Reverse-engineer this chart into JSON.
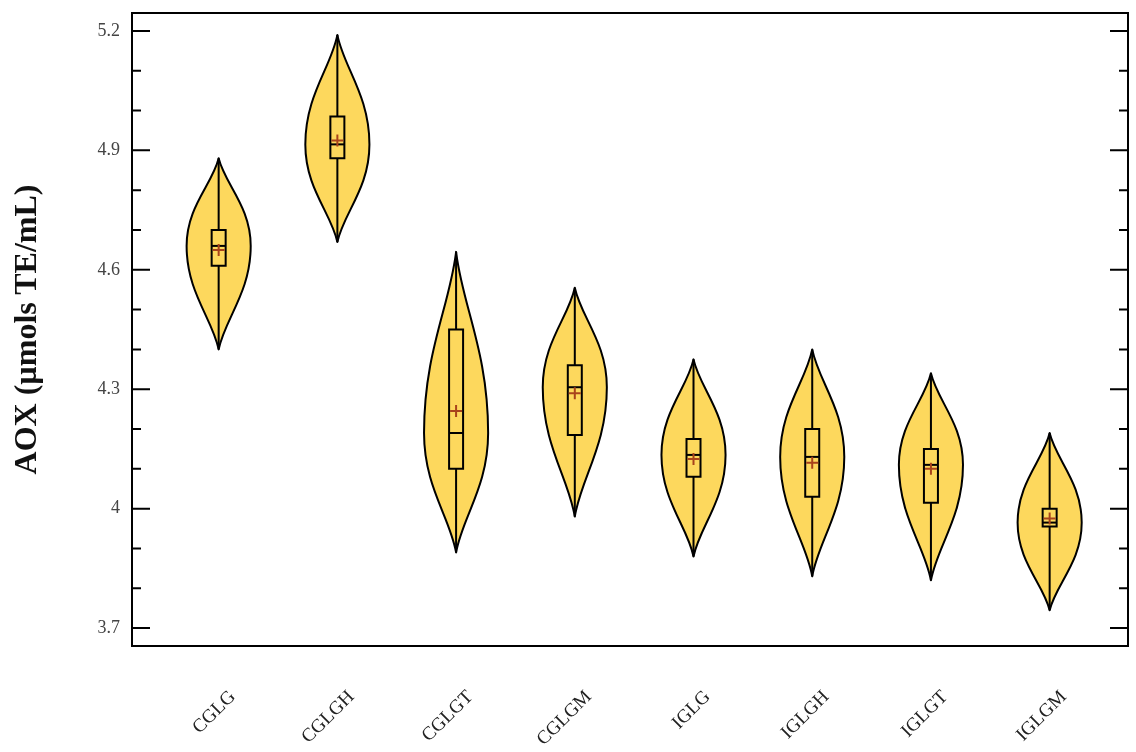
{
  "chart_data": {
    "type": "box",
    "ylabel": "AOX (µmols TE/mL)",
    "categories": [
      "CGLG",
      "CGLGH",
      "CGLGT",
      "CGLGM",
      "IGLG",
      "IGLGH",
      "IGLGT",
      "IGLGM"
    ],
    "series": [
      {
        "color": "#000000",
        "boxes": [
          {
            "low": 4.4,
            "q1": 4.61,
            "median": 4.66,
            "q3": 4.7,
            "high": 4.88,
            "mean": 4.65
          },
          {
            "low": 4.67,
            "q1": 4.88,
            "median": 4.915,
            "q3": 4.985,
            "high": 5.19,
            "mean": 4.925
          },
          {
            "low": 3.89,
            "q1": 4.1,
            "median": 4.19,
            "q3": 4.45,
            "high": 4.645,
            "mean": 4.245
          },
          {
            "low": 3.98,
            "q1": 4.185,
            "median": 4.305,
            "q3": 4.36,
            "high": 4.555,
            "mean": 4.29
          },
          {
            "low": 3.88,
            "q1": 4.08,
            "median": 4.135,
            "q3": 4.175,
            "high": 4.375,
            "mean": 4.125
          },
          {
            "low": 3.83,
            "q1": 4.03,
            "median": 4.13,
            "q3": 4.2,
            "high": 4.4,
            "mean": 4.115
          },
          {
            "low": 3.82,
            "q1": 4.015,
            "median": 4.11,
            "q3": 4.15,
            "high": 4.34,
            "mean": 4.1
          },
          {
            "low": 3.745,
            "q1": 3.955,
            "median": 3.965,
            "q3": 4.0,
            "high": 4.19,
            "mean": 3.975
          }
        ]
      }
    ],
    "ylim": [
      3.655,
      5.245
    ],
    "yticks": [
      3.7,
      {
        "value": 3.8,
        "label": null
      },
      {
        "value": 3.9,
        "label": null
      },
      4,
      {
        "value": 4.1,
        "label": null
      },
      {
        "value": 4.2,
        "label": null
      },
      4.3,
      {
        "value": 4.4,
        "label": null
      },
      {
        "value": 4.5,
        "label": null
      },
      4.6,
      {
        "value": 4.7,
        "label": null
      },
      {
        "value": 4.8,
        "label": null
      },
      4.9,
      {
        "value": 5.0,
        "label": null
      },
      {
        "value": 5.1,
        "label": null
      },
      5.2
    ],
    "marker": "cross"
  }
}
